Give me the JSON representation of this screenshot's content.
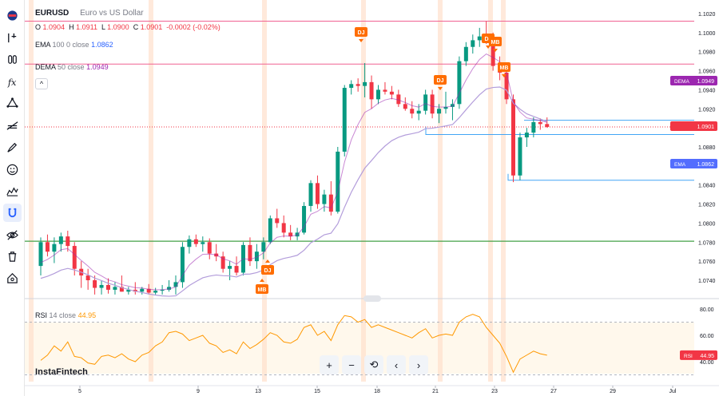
{
  "legend": {
    "symbol": "EURUSD",
    "description": "Euro vs US Dollar",
    "ohlc": {
      "o_label": "O",
      "o_value": "1.0904",
      "h_label": "H",
      "h_value": "1.0911",
      "l_label": "L",
      "l_value": "1.0900",
      "c_label": "C",
      "c_value": "1.0901",
      "change": "-0.0002 (-0.02%)"
    },
    "ema": {
      "name": "EMA",
      "params": "100 0 close",
      "value": "1.0862"
    },
    "dema": {
      "name": "DEMA",
      "params": "50 close",
      "value": "1.0949"
    },
    "rsi": {
      "name": "RSI",
      "params": "14 close",
      "value": "44.95"
    },
    "collapse": "^"
  },
  "price_axis": {
    "ticks": [
      "1.1020",
      "1.1000",
      "1.0980",
      "1.0960",
      "1.0940",
      "1.0920",
      "1.0900",
      "1.0880",
      "1.0860",
      "1.0840",
      "1.0820",
      "1.0800",
      "1.0780",
      "1.0760",
      "1.0740"
    ],
    "badges": {
      "dema_label": "DEMA",
      "dema_value": "1.0949",
      "last_value": "1.0901",
      "ema_label": "EMA",
      "ema_value": "1.0862"
    }
  },
  "rsi_axis": {
    "ticks": [
      "80.00",
      "60.00",
      "40.00"
    ],
    "badge_label": "RSI",
    "badge_value": "44.95"
  },
  "time_axis": {
    "ticks": [
      "5",
      "9",
      "13",
      "15",
      "18",
      "21",
      "23",
      "27",
      "29",
      "Jul"
    ]
  },
  "events": [
    {
      "label": "DJ"
    },
    {
      "label": "DJ"
    },
    {
      "label": "DJ"
    },
    {
      "label": "MB"
    },
    {
      "label": "MB"
    },
    {
      "label": "DJ"
    },
    {
      "label": "MB"
    }
  ],
  "controls": {
    "zoom_in": "+",
    "zoom_out": "−",
    "reset": "⟲",
    "back": "‹",
    "forward": "›"
  },
  "logo": "InstaFintech",
  "colors": {
    "up": "#089981",
    "down": "#f23645",
    "ema": "#b39ddb",
    "dema": "#9c27b0",
    "event": "#ff6d00",
    "rsi": "#ff9800",
    "hline_pink": "#f06292",
    "hline_green": "#43a047",
    "hline_blue": "#42a5f5"
  },
  "chart_data": {
    "type": "candlestick",
    "symbol": "EURUSD",
    "ylim": [
      1.0725,
      1.1025
    ],
    "candles": [
      [
        1.0755,
        1.0785,
        1.0745,
        1.078
      ],
      [
        1.078,
        1.0788,
        1.0765,
        1.077
      ],
      [
        1.077,
        1.0785,
        1.0758,
        1.0778
      ],
      [
        1.0778,
        1.079,
        1.077,
        1.0786
      ],
      [
        1.0786,
        1.0792,
        1.077,
        1.0776
      ],
      [
        1.0776,
        1.078,
        1.0745,
        1.0752
      ],
      [
        1.0752,
        1.076,
        1.0732,
        1.0745
      ],
      [
        1.0745,
        1.0752,
        1.073,
        1.074
      ],
      [
        1.074,
        1.0745,
        1.0725,
        1.0732
      ],
      [
        1.0732,
        1.074,
        1.0725,
        1.0735
      ],
      [
        1.0735,
        1.0742,
        1.0726,
        1.073
      ],
      [
        1.073,
        1.0738,
        1.0725,
        1.0733
      ],
      [
        1.0733,
        1.0745,
        1.0728,
        1.0728
      ],
      [
        1.0728,
        1.0733,
        1.0725,
        1.073
      ],
      [
        1.073,
        1.0738,
        1.0725,
        1.0728
      ],
      [
        1.0728,
        1.0733,
        1.0725,
        1.0731
      ],
      [
        1.0731,
        1.0736,
        1.0725,
        1.0727
      ],
      [
        1.0727,
        1.0732,
        1.0725,
        1.0729
      ],
      [
        1.0729,
        1.0735,
        1.0725,
        1.073
      ],
      [
        1.073,
        1.074,
        1.0728,
        1.0733
      ],
      [
        1.0733,
        1.0745,
        1.0725,
        1.0738
      ],
      [
        1.0738,
        1.078,
        1.0732,
        1.0775
      ],
      [
        1.0775,
        1.0787,
        1.0768,
        1.0783
      ],
      [
        1.0783,
        1.0788,
        1.0775,
        1.0778
      ],
      [
        1.0778,
        1.0786,
        1.077,
        1.078
      ],
      [
        1.078,
        1.0784,
        1.0762,
        1.0768
      ],
      [
        1.0768,
        1.0778,
        1.076,
        1.0765
      ],
      [
        1.0765,
        1.077,
        1.0748,
        1.0752
      ],
      [
        1.0752,
        1.076,
        1.074,
        1.0755
      ],
      [
        1.0755,
        1.0765,
        1.0745,
        1.0748
      ],
      [
        1.0748,
        1.078,
        1.0745,
        1.0777
      ],
      [
        1.0777,
        1.0785,
        1.0755,
        1.076
      ],
      [
        1.076,
        1.0778,
        1.0752,
        1.077
      ],
      [
        1.077,
        1.0785,
        1.0762,
        1.078
      ],
      [
        1.078,
        1.0808,
        1.0778,
        1.0805
      ],
      [
        1.0805,
        1.0815,
        1.0795,
        1.08
      ],
      [
        1.08,
        1.0808,
        1.0785,
        1.079
      ],
      [
        1.079,
        1.0798,
        1.0782,
        1.0786
      ],
      [
        1.0786,
        1.0795,
        1.0782,
        1.079
      ],
      [
        1.079,
        1.0822,
        1.0788,
        1.0818
      ],
      [
        1.0818,
        1.0845,
        1.0812,
        1.0842
      ],
      [
        1.0842,
        1.085,
        1.0815,
        1.082
      ],
      [
        1.082,
        1.0835,
        1.0812,
        1.083
      ],
      [
        1.083,
        1.0844,
        1.0808,
        1.0812
      ],
      [
        1.0812,
        1.088,
        1.081,
        1.0875
      ],
      [
        1.0875,
        1.0945,
        1.087,
        1.0942
      ],
      [
        1.0942,
        1.095,
        1.0935,
        1.0946
      ],
      [
        1.0946,
        1.0952,
        1.0938,
        1.0944
      ],
      [
        1.0944,
        1.0968,
        1.0932,
        1.0948
      ],
      [
        1.0948,
        1.0955,
        1.092,
        1.093
      ],
      [
        1.093,
        1.0945,
        1.0925,
        1.094
      ],
      [
        1.094,
        1.0948,
        1.0935,
        1.0938
      ],
      [
        1.0938,
        1.0944,
        1.093,
        1.0935
      ],
      [
        1.0935,
        1.094,
        1.0922,
        1.0925
      ],
      [
        1.0925,
        1.0932,
        1.0918,
        1.092
      ],
      [
        1.092,
        1.0928,
        1.091,
        1.0915
      ],
      [
        1.0915,
        1.0925,
        1.0908,
        1.0918
      ],
      [
        1.0918,
        1.094,
        1.0914,
        1.0935
      ],
      [
        1.0935,
        1.094,
        1.091,
        1.0915
      ],
      [
        1.0915,
        1.0925,
        1.0905,
        1.092
      ],
      [
        1.092,
        1.0938,
        1.0915,
        1.0922
      ],
      [
        1.0922,
        1.093,
        1.0908,
        1.0925
      ],
      [
        1.0925,
        1.0975,
        1.092,
        1.097
      ],
      [
        1.097,
        1.099,
        1.0965,
        1.0985
      ],
      [
        1.0985,
        1.0998,
        1.0978,
        1.0992
      ],
      [
        1.0992,
        1.1005,
        1.0985,
        1.0996
      ],
      [
        1.0996,
        1.1012,
        1.0988,
        1.0992
      ],
      [
        1.0992,
        1.1,
        1.096,
        1.0965
      ],
      [
        1.0965,
        1.0975,
        1.095,
        1.0958
      ],
      [
        1.0958,
        1.0965,
        1.0925,
        1.093
      ],
      [
        1.093,
        1.0935,
        1.0843,
        1.085
      ],
      [
        1.085,
        1.0895,
        1.0845,
        1.089
      ],
      [
        1.089,
        1.09,
        1.088,
        1.0895
      ],
      [
        1.0895,
        1.0911,
        1.089,
        1.0906
      ],
      [
        1.0906,
        1.091,
        1.0898,
        1.0904
      ],
      [
        1.0904,
        1.0911,
        1.09,
        1.0901
      ]
    ],
    "rsi_values": [
      41,
      45,
      52,
      48,
      55,
      44,
      43,
      39,
      38,
      44,
      45,
      43,
      46,
      42,
      40,
      45,
      47,
      52,
      55,
      62,
      63,
      61,
      56,
      58,
      60,
      54,
      52,
      47,
      49,
      46,
      55,
      50,
      53,
      57,
      62,
      60,
      55,
      54,
      57,
      66,
      68,
      60,
      63,
      56,
      68,
      75,
      74,
      70,
      72,
      66,
      68,
      66,
      64,
      62,
      60,
      58,
      62,
      65,
      58,
      60,
      61,
      60,
      70,
      74,
      76,
      74,
      66,
      60,
      54,
      44,
      32,
      42,
      45,
      48,
      46,
      44.95
    ],
    "rsi_ylim": [
      25,
      85
    ],
    "horizontal_levels": [
      1.1012,
      1.0967,
      1.0781,
      1.0908,
      1.0893,
      1.0845
    ]
  }
}
